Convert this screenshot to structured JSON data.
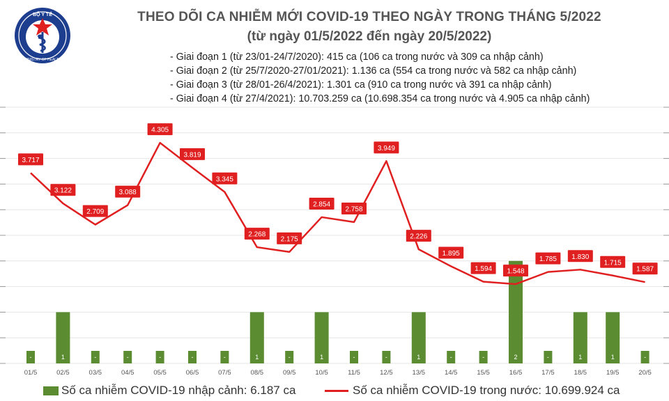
{
  "header": {
    "logo_text_top": "BỘ Y TẾ",
    "logo_text_bottom": "MINISTRY OF HEALTH",
    "title": "THEO DÕI CA NHIỄM MỚI COVID-19 THEO NGÀY TRONG THÁNG 5/2022",
    "subtitle": "(từ ngày 01/5/2022 đến ngày 20/5/2022)"
  },
  "stages": [
    "- Giai đoạn 1 (từ 23/01-24/7/2020): 415 ca (106 ca trong nước và 309 ca nhập cảnh)",
    "- Giai đoạn 2 (từ 25/7/2020-27/01/2021): 1.136 ca (554 ca trong nước và 582 ca nhập cảnh)",
    "- Giai đoạn 3 (từ 28/01-26/4/2021): 1.301 ca (910 ca trong nước và 391 ca nhập cảnh)",
    "- Giai đoạn 4 (từ 27/4/2021): 10.703.259 ca (10.698.354 ca trong nước và 4.905 ca nhập cảnh)"
  ],
  "legend": {
    "bar_label": "Số ca nhiễm COVID-19 nhập cảnh: 6.187 ca",
    "line_label": "Số ca nhiễm COVID-19 trong nước: 10.699.924 ca"
  },
  "colors": {
    "bar": "#5b8c32",
    "line": "#e02020",
    "label_box": "#e02020",
    "grid": "#e6e6e6"
  },
  "chart_data": {
    "type": "bar+line",
    "categories": [
      "01/5",
      "02/5",
      "03/5",
      "04/5",
      "05/5",
      "06/5",
      "07/5",
      "08/5",
      "09/5",
      "10/5",
      "11/5",
      "12/5",
      "13/5",
      "14/5",
      "15/5",
      "16/5",
      "17/5",
      "18/5",
      "19/5",
      "20/5"
    ],
    "series": [
      {
        "name": "Số ca nhiễm COVID-19 nhập cảnh: 6.187 ca",
        "type": "bar",
        "axis": "right",
        "values": [
          0,
          1,
          0,
          0,
          0,
          0,
          0,
          1,
          0,
          1,
          0,
          0,
          1,
          0,
          0,
          2,
          0,
          1,
          1,
          0
        ],
        "labels": [
          "-",
          "1",
          "-",
          "-",
          "-",
          "-",
          "-",
          "1",
          "-",
          "1",
          "-",
          "-",
          "1",
          "-",
          "-",
          "2",
          "-",
          "1",
          "1",
          "-"
        ]
      },
      {
        "name": "Số ca nhiễm COVID-19 trong nước: 10.699.924 ca",
        "type": "line",
        "axis": "left",
        "values": [
          3717,
          3122,
          2709,
          3088,
          4305,
          3819,
          3345,
          2268,
          2175,
          2854,
          2758,
          3949,
          2226,
          1895,
          1594,
          1548,
          1785,
          1830,
          1715,
          1587
        ],
        "labels": [
          "3.717",
          "3.122",
          "2.709",
          "3.088",
          "4.305",
          "3.819",
          "3.345",
          "2.268",
          "2.175",
          "2.854",
          "2.758",
          "3.949",
          "2.226",
          "1.895",
          "1.594",
          "1.548",
          "1.785",
          "1.830",
          "1.715",
          "1.587"
        ]
      }
    ],
    "left_ylim": [
      0,
      5000
    ],
    "right_ylim": [
      0,
      5
    ],
    "grid": true,
    "legend_position": "bottom"
  }
}
